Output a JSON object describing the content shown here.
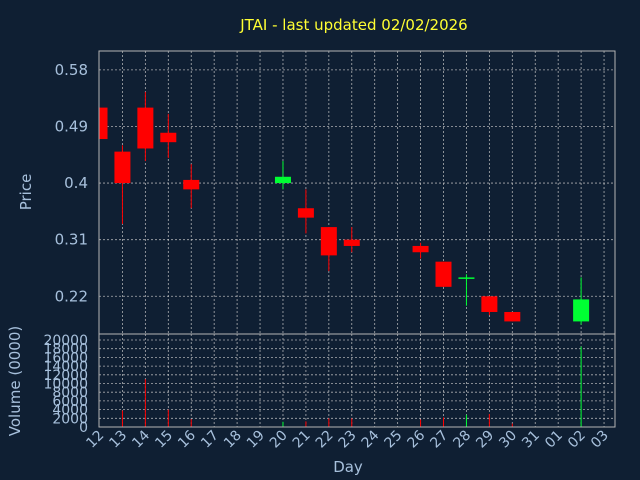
{
  "title": "JTAI - last updated 02/02/2026",
  "chart_data": [
    {
      "type": "candlestick",
      "title": "JTAI - last updated 02/02/2026",
      "ylabel": "Price",
      "xlabel": "",
      "ylim": [
        0.16,
        0.61
      ],
      "yticks": [
        "0.58",
        "0.49",
        "0.4",
        "0.31",
        "0.22"
      ],
      "ytick_values": [
        0.58,
        0.49,
        0.4,
        0.31,
        0.22
      ],
      "grid": true,
      "up_color": "#00ff33",
      "down_color": "#ff0000",
      "x": [
        "12",
        "13",
        "14",
        "15",
        "16",
        "20",
        "21",
        "22",
        "23",
        "26",
        "27",
        "28",
        "29",
        "30",
        "02"
      ],
      "open": [
        0.52,
        0.45,
        0.52,
        0.48,
        0.405,
        0.4,
        0.36,
        0.33,
        0.31,
        0.3,
        0.275,
        0.25,
        0.22,
        0.195,
        0.18
      ],
      "high": [
        0.52,
        0.46,
        0.545,
        0.51,
        0.43,
        0.435,
        0.39,
        0.33,
        0.33,
        0.305,
        0.275,
        0.255,
        0.22,
        0.195,
        0.25
      ],
      "low": [
        0.47,
        0.335,
        0.435,
        0.44,
        0.36,
        0.39,
        0.32,
        0.26,
        0.29,
        0.28,
        0.235,
        0.205,
        0.19,
        0.18,
        0.175
      ],
      "close": [
        0.47,
        0.4,
        0.455,
        0.465,
        0.39,
        0.41,
        0.345,
        0.285,
        0.3,
        0.29,
        0.235,
        0.25,
        0.195,
        0.18,
        0.215
      ]
    },
    {
      "type": "bar",
      "ylabel": "Volume (0000)",
      "xlabel": "Day",
      "ylim": [
        0,
        20000
      ],
      "yticks": [
        "20000",
        "18000",
        "16000",
        "14000",
        "12000",
        "10000",
        "8000",
        "6000",
        "4000",
        "2000",
        "0"
      ],
      "ytick_values": [
        20000,
        18000,
        16000,
        14000,
        12000,
        10000,
        8000,
        6000,
        4000,
        2000,
        0
      ],
      "categories": [
        "12",
        "13",
        "14",
        "15",
        "16",
        "20",
        "21",
        "22",
        "23",
        "26",
        "27",
        "28",
        "29",
        "30",
        "02"
      ],
      "values": [
        0,
        3800,
        11000,
        4000,
        1800,
        1200,
        1300,
        2000,
        2000,
        1700,
        2200,
        2800,
        3000,
        800,
        18500
      ],
      "colors": [
        "#ff0000",
        "#ff0000",
        "#ff0000",
        "#ff0000",
        "#ff0000",
        "#00ff33",
        "#ff0000",
        "#ff0000",
        "#ff0000",
        "#ff0000",
        "#ff0000",
        "#00ff33",
        "#ff0000",
        "#ff0000",
        "#00ff33"
      ],
      "xticks": [
        "12",
        "13",
        "14",
        "15",
        "16",
        "17",
        "18",
        "19",
        "20",
        "21",
        "22",
        "23",
        "24",
        "25",
        "26",
        "27",
        "28",
        "29",
        "30",
        "31",
        "01",
        "02",
        "03"
      ]
    }
  ]
}
